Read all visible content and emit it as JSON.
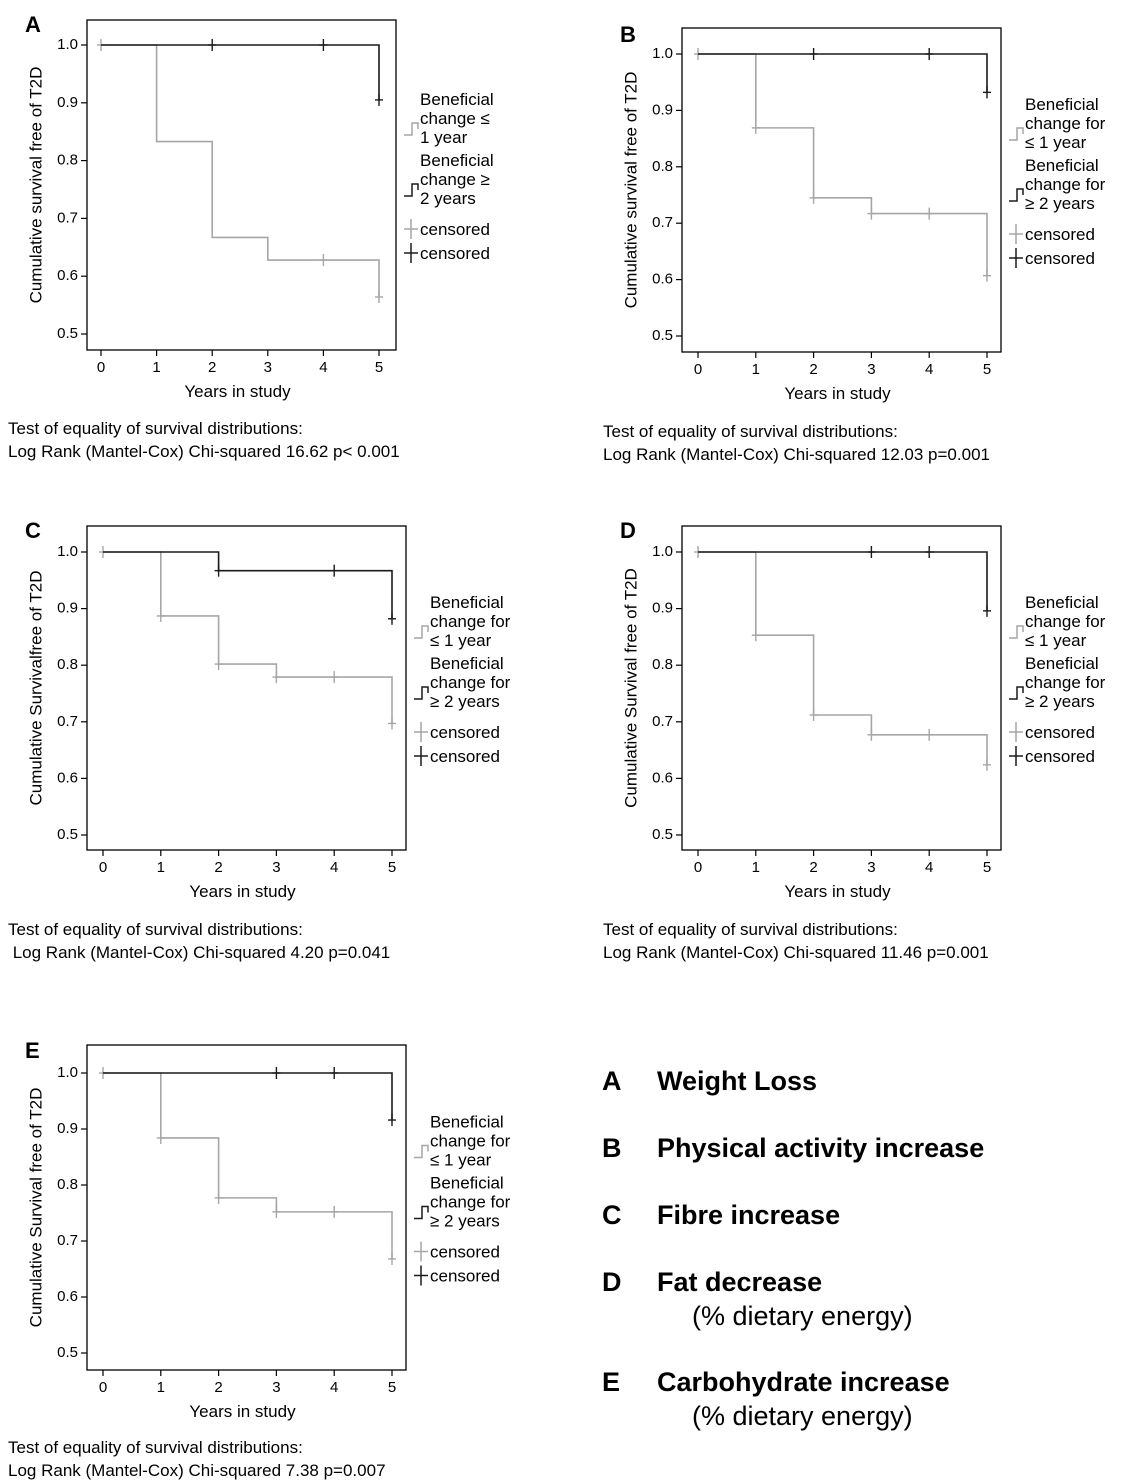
{
  "legend_key": [
    {
      "letter": "A",
      "text": "Weight Loss",
      "sub": ""
    },
    {
      "letter": "B",
      "text": "Physical activity increase",
      "sub": ""
    },
    {
      "letter": "C",
      "text": "Fibre increase",
      "sub": ""
    },
    {
      "letter": "D",
      "text": "Fat decrease",
      "sub": "(% dietary energy)"
    },
    {
      "letter": "E",
      "text": "Carbohydrate increase",
      "sub": "(% dietary energy)"
    }
  ],
  "colors": {
    "short_change": "#a6a6a6",
    "long_change": "#1a1a1a"
  },
  "chart_data": [
    {
      "panel": "A",
      "type": "line",
      "step": true,
      "xlabel": "Years in study",
      "ylabel": "Cumulative survival free of T2D",
      "xticks": [
        "0",
        "1",
        "2",
        "3",
        "4",
        "5"
      ],
      "yticks": [
        "0.5",
        "0.6",
        "0.7",
        "0.8",
        "0.9",
        "1.0"
      ],
      "xlim": [
        0,
        5
      ],
      "ylim": [
        0.5,
        1.0
      ],
      "legend_position": "right",
      "series": [
        {
          "name": "Beneficial change ≤ 1 year",
          "legend_lines": [
            "Beneficial",
            "change ≤",
            "1 year"
          ],
          "style": "short",
          "x": [
            0,
            1,
            2,
            3,
            4,
            5
          ],
          "y": [
            1.0,
            0.833,
            0.667,
            0.628,
            0.628,
            0.564
          ],
          "censored": [
            0,
            4,
            5
          ]
        },
        {
          "name": "Beneficial change ≥ 2 years",
          "legend_lines": [
            "Beneficial",
            "change ≥",
            "2 years"
          ],
          "style": "long",
          "x": [
            0,
            1,
            2,
            3,
            4,
            5
          ],
          "y": [
            1.0,
            1.0,
            1.0,
            1.0,
            1.0,
            0.905
          ],
          "censored": [
            2,
            4,
            5
          ]
        }
      ],
      "censored_labels": [
        "censored",
        "censored"
      ],
      "test_lines": [
        "Test of equality of survival distributions:",
        "Log Rank (Mantel-Cox) Chi-squared 16.62 p< 0.001"
      ]
    },
    {
      "panel": "B",
      "type": "line",
      "step": true,
      "xlabel": "Years in study",
      "ylabel": "Cumulative survival free of T2D",
      "xticks": [
        "0",
        "1",
        "2",
        "3",
        "4",
        "5"
      ],
      "yticks": [
        "0.5",
        "0.6",
        "0.7",
        "0.8",
        "0.9",
        "1.0"
      ],
      "xlim": [
        0,
        5
      ],
      "ylim": [
        0.5,
        1.0
      ],
      "legend_position": "right",
      "series": [
        {
          "name": "Beneficial change for ≤ 1 year",
          "legend_lines": [
            "Beneficial",
            "change for",
            "≤ 1 year"
          ],
          "style": "short",
          "x": [
            0,
            1,
            2,
            3,
            4,
            5
          ],
          "y": [
            1.0,
            0.869,
            0.745,
            0.717,
            0.717,
            0.607
          ],
          "censored": [
            0,
            1,
            2,
            3,
            4,
            5
          ]
        },
        {
          "name": "Beneficial change for ≥ 2 years",
          "legend_lines": [
            "Beneficial",
            "change for",
            "≥ 2 years"
          ],
          "style": "long",
          "x": [
            0,
            1,
            2,
            3,
            4,
            5
          ],
          "y": [
            1.0,
            1.0,
            1.0,
            1.0,
            1.0,
            0.932
          ],
          "censored": [
            2,
            4,
            5
          ]
        }
      ],
      "censored_labels": [
        "censored",
        "censored"
      ],
      "test_lines": [
        "Test of equality of survival distributions:",
        "Log Rank (Mantel-Cox) Chi-squared 12.03 p=0.001"
      ]
    },
    {
      "panel": "C",
      "type": "line",
      "step": true,
      "xlabel": "Years in study",
      "ylabel": "Cumulative Survivalfree of T2D",
      "xticks": [
        "0",
        "1",
        "2",
        "3",
        "4",
        "5"
      ],
      "yticks": [
        "0.5",
        "0.6",
        "0.7",
        "0.8",
        "0.9",
        "1.0"
      ],
      "xlim": [
        0,
        5
      ],
      "ylim": [
        0.5,
        1.0
      ],
      "legend_position": "right",
      "series": [
        {
          "name": "Beneficial change for ≤ 1 year",
          "legend_lines": [
            "Beneficial",
            "change for",
            "≤ 1 year"
          ],
          "style": "short",
          "x": [
            0,
            1,
            2,
            3,
            4,
            5
          ],
          "y": [
            1.0,
            0.887,
            0.802,
            0.779,
            0.779,
            0.697
          ],
          "censored": [
            0,
            1,
            2,
            3,
            4,
            5
          ]
        },
        {
          "name": "Beneficial change for ≥ 2 years",
          "legend_lines": [
            "Beneficial",
            "change for",
            "≥ 2 years"
          ],
          "style": "long",
          "x": [
            0,
            1,
            2,
            3,
            4,
            5
          ],
          "y": [
            1.0,
            1.0,
            0.967,
            0.967,
            0.967,
            0.882
          ],
          "censored": [
            2,
            4,
            5
          ]
        }
      ],
      "censored_labels": [
        "censored",
        "censored"
      ],
      "test_lines": [
        "Test of equality of survival distributions:",
        " Log Rank (Mantel-Cox) Chi-squared 4.20 p=0.041"
      ]
    },
    {
      "panel": "D",
      "type": "line",
      "step": true,
      "xlabel": "Years in study",
      "ylabel": "Cumulative Survival free of T2D",
      "xticks": [
        "0",
        "1",
        "2",
        "3",
        "4",
        "5"
      ],
      "yticks": [
        "0.5",
        "0.6",
        "0.7",
        "0.8",
        "0.9",
        "1.0"
      ],
      "xlim": [
        0,
        5
      ],
      "ylim": [
        0.5,
        1.0
      ],
      "legend_position": "right",
      "series": [
        {
          "name": "Beneficial change for ≤ 1 year",
          "legend_lines": [
            "Beneficial",
            "change for",
            "≤ 1 year"
          ],
          "style": "short",
          "x": [
            0,
            1,
            2,
            3,
            4,
            5
          ],
          "y": [
            1.0,
            0.853,
            0.712,
            0.677,
            0.677,
            0.624
          ],
          "censored": [
            0,
            1,
            2,
            3,
            4,
            5
          ]
        },
        {
          "name": "Beneficial change for ≥ 2 years",
          "legend_lines": [
            "Beneficial",
            "change for",
            "≥ 2 years"
          ],
          "style": "long",
          "x": [
            0,
            1,
            2,
            3,
            4,
            5
          ],
          "y": [
            1.0,
            1.0,
            1.0,
            1.0,
            1.0,
            0.896
          ],
          "censored": [
            3,
            4,
            5
          ]
        }
      ],
      "censored_labels": [
        "censored",
        "censored"
      ],
      "test_lines": [
        "Test of equality of survival distributions:",
        "Log Rank (Mantel-Cox) Chi-squared 11.46 p=0.001"
      ]
    },
    {
      "panel": "E",
      "type": "line",
      "step": true,
      "xlabel": "Years in study",
      "ylabel": "Cumulative Survival free of T2D",
      "xticks": [
        "0",
        "1",
        "2",
        "3",
        "4",
        "5"
      ],
      "yticks": [
        "0.5",
        "0.6",
        "0.7",
        "0.8",
        "0.9",
        "1.0"
      ],
      "xlim": [
        0,
        5
      ],
      "ylim": [
        0.5,
        1.0
      ],
      "legend_position": "right",
      "series": [
        {
          "name": "Beneficial change for ≤ 1 year",
          "legend_lines": [
            "Beneficial",
            "change for",
            "≤ 1 year"
          ],
          "style": "short",
          "x": [
            0,
            1,
            2,
            3,
            4,
            5
          ],
          "y": [
            1.0,
            0.884,
            0.777,
            0.752,
            0.752,
            0.668
          ],
          "censored": [
            0,
            1,
            2,
            3,
            4,
            5
          ]
        },
        {
          "name": "Beneficial change for ≥ 2 years",
          "legend_lines": [
            "Beneficial",
            "change for",
            "≥ 2 years"
          ],
          "style": "long",
          "x": [
            0,
            1,
            2,
            3,
            4,
            5
          ],
          "y": [
            1.0,
            1.0,
            1.0,
            1.0,
            1.0,
            0.916
          ],
          "censored": [
            3,
            4,
            5
          ]
        }
      ],
      "censored_labels": [
        "censored",
        "censored"
      ],
      "test_lines": [
        "Test of equality of survival distributions:",
        "Log Rank (Mantel-Cox) Chi-squared 7.38 p=0.007"
      ]
    }
  ]
}
